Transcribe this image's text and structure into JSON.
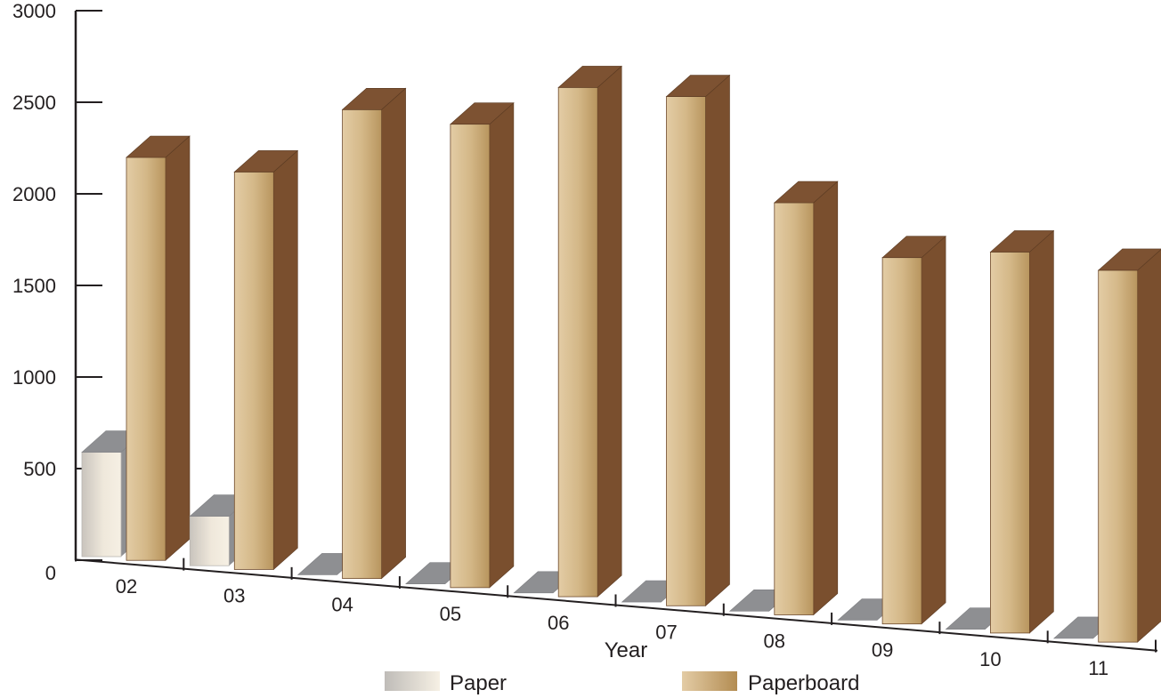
{
  "chart_data": {
    "type": "bar",
    "title": "",
    "xlabel": "Year",
    "ylabel": "",
    "ylim": [
      0,
      3000
    ],
    "yticks": [
      "0",
      "500",
      "1000",
      "1500",
      "2000",
      "2500",
      "3000"
    ],
    "categories": [
      "02",
      "03",
      "04",
      "05",
      "06",
      "07",
      "08",
      "09",
      "10",
      "11"
    ],
    "series": [
      {
        "name": "Paper",
        "values": [
          570,
          270,
          0,
          0,
          0,
          0,
          0,
          0,
          0,
          0
        ]
      },
      {
        "name": "Paperboard",
        "values": [
          2200,
          2170,
          2560,
          2530,
          2780,
          2780,
          2250,
          2000,
          2080,
          2030
        ]
      }
    ],
    "legend_position": "bottom",
    "grid": false,
    "three_d": true,
    "colors": {
      "paper_front_light": "#f4ede0",
      "paper_front_dark": "#c9c4bd",
      "paper_top": "#8e8f92",
      "board_front_light": "#e0c8a0",
      "board_front_dark": "#b89660",
      "board_side": "#7a4f2e",
      "board_top": "#7d5232",
      "axis": "#231f20"
    }
  }
}
